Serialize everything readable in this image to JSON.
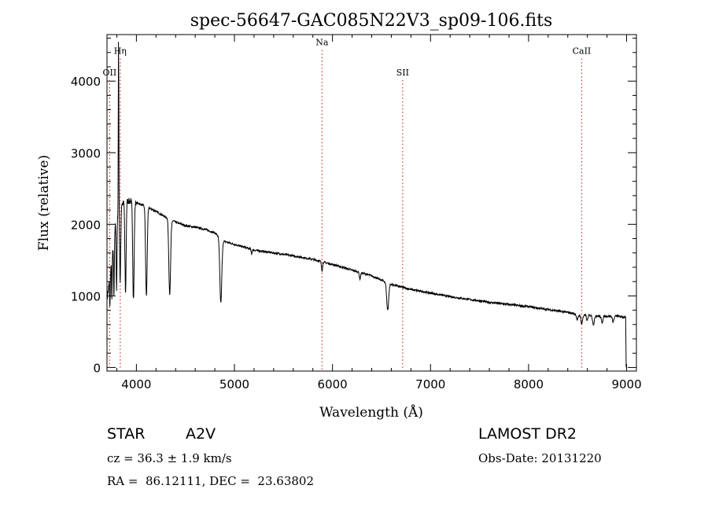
{
  "chart_data": {
    "type": "line",
    "title": "spec-56647-GAC085N22V3_sp09-106.fits",
    "xlabel": "Wavelength (Å)",
    "ylabel": "Flux (relative)",
    "xlim": [
      3700,
      9100
    ],
    "ylim": [
      -50,
      4650
    ],
    "x_ticks": [
      4000,
      5000,
      6000,
      7000,
      8000,
      9000
    ],
    "y_ticks": [
      0,
      1000,
      2000,
      3000,
      4000
    ],
    "grid": false,
    "color": "#000000",
    "line_markers": [
      {
        "label": "OII",
        "wavelength": 3727,
        "label_flux": 4080
      },
      {
        "label": "Hη",
        "wavelength": 3835,
        "label_flux": 4380
      },
      {
        "label": "Na",
        "wavelength": 5893,
        "label_flux": 4500
      },
      {
        "label": "SII",
        "wavelength": 6716,
        "label_flux": 4080
      },
      {
        "label": "CaII",
        "wavelength": 8542,
        "label_flux": 4380
      }
    ],
    "marker_color": "#cc3333",
    "continuum": [
      [
        3705,
        1000
      ],
      [
        3740,
        1400
      ],
      [
        3780,
        1950
      ],
      [
        3800,
        2100
      ],
      [
        3830,
        2200
      ],
      [
        3850,
        2280
      ],
      [
        3900,
        2330
      ],
      [
        4000,
        2300
      ],
      [
        4100,
        2250
      ],
      [
        4200,
        2180
      ],
      [
        4300,
        2100
      ],
      [
        4400,
        2030
      ],
      [
        4500,
        1980
      ],
      [
        4600,
        1960
      ],
      [
        4700,
        1930
      ],
      [
        4800,
        1880
      ],
      [
        4900,
        1760
      ],
      [
        5000,
        1720
      ],
      [
        5200,
        1640
      ],
      [
        5400,
        1600
      ],
      [
        5600,
        1560
      ],
      [
        5800,
        1510
      ],
      [
        6000,
        1440
      ],
      [
        6200,
        1360
      ],
      [
        6400,
        1280
      ],
      [
        6600,
        1160
      ],
      [
        6800,
        1090
      ],
      [
        7000,
        1040
      ],
      [
        7200,
        990
      ],
      [
        7400,
        950
      ],
      [
        7600,
        910
      ],
      [
        7800,
        880
      ],
      [
        8000,
        850
      ],
      [
        8200,
        810
      ],
      [
        8400,
        770
      ],
      [
        8500,
        740
      ],
      [
        8600,
        730
      ],
      [
        8700,
        720
      ],
      [
        8800,
        715
      ],
      [
        8900,
        720
      ],
      [
        8990,
        700
      ]
    ],
    "absorption_lines": [
      {
        "wavelength": 3730,
        "depth": 450,
        "width": 3
      },
      {
        "wavelength": 3750,
        "depth": 600,
        "width": 3
      },
      {
        "wavelength": 3771,
        "depth": 850,
        "width": 4
      },
      {
        "wavelength": 3798,
        "depth": 1000,
        "width": 4
      },
      {
        "wavelength": 3835,
        "depth": 1050,
        "width": 5
      },
      {
        "wavelength": 3889,
        "depth": 1300,
        "width": 6
      },
      {
        "wavelength": 3970,
        "depth": 1350,
        "width": 7
      },
      {
        "wavelength": 4102,
        "depth": 1250,
        "width": 8
      },
      {
        "wavelength": 4340,
        "depth": 1050,
        "width": 9
      },
      {
        "wavelength": 4861,
        "depth": 900,
        "width": 10
      },
      {
        "wavelength": 5175,
        "depth": 60,
        "width": 5
      },
      {
        "wavelength": 5893,
        "depth": 120,
        "width": 6
      },
      {
        "wavelength": 6280,
        "depth": 90,
        "width": 6
      },
      {
        "wavelength": 6563,
        "depth": 380,
        "width": 10
      },
      {
        "wavelength": 8498,
        "depth": 80,
        "width": 8
      },
      {
        "wavelength": 8542,
        "depth": 120,
        "width": 9
      },
      {
        "wavelength": 8598,
        "depth": 70,
        "width": 7
      },
      {
        "wavelength": 8662,
        "depth": 120,
        "width": 9
      },
      {
        "wavelength": 8750,
        "depth": 90,
        "width": 8
      },
      {
        "wavelength": 8863,
        "depth": 80,
        "width": 8
      }
    ],
    "emission_spike": {
      "wavelength": 3818,
      "flux": 4600
    }
  },
  "info": {
    "object_class": "STAR",
    "subclass": "A2V",
    "survey": "LAMOST DR2",
    "redshift": "cz = 36.3 ± 1.9 km/s",
    "obs_date": "Obs-Date: 20131220",
    "coords": "RA =  86.12111, DEC =  23.63802"
  }
}
